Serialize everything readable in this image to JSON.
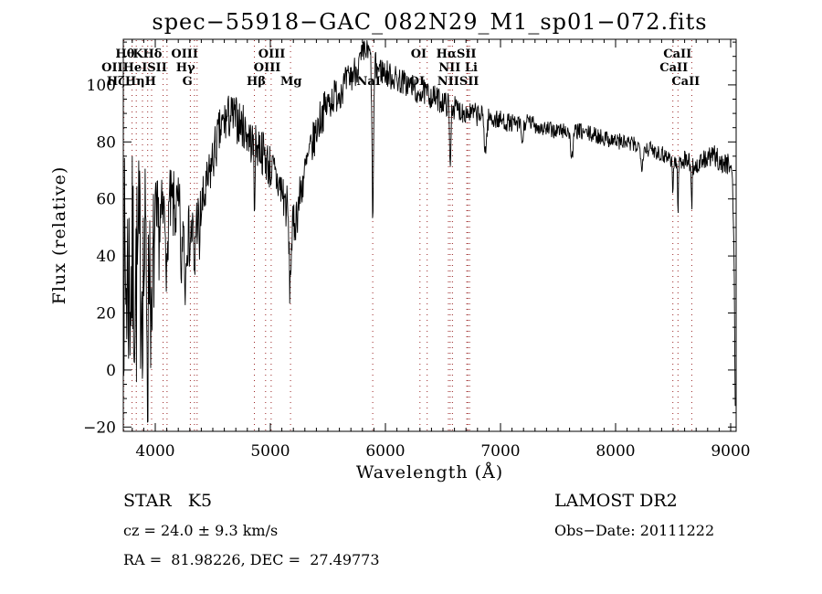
{
  "figure": {
    "title": "spec−55918−GAC_082N29_M1_sp01−072.fits",
    "footer": {
      "class_label": "STAR   K5",
      "survey": "LAMOST DR2",
      "cz": "cz = 24.0 ± 9.3 km/s",
      "obs_date": "Obs−Date: 20111222",
      "coords": "RA =  81.98226, DEC =  27.49773"
    }
  },
  "chart_data": {
    "type": "line",
    "title": "spec−55918−GAC_082N29_M1_sp01−072.fits",
    "xlabel": "Wavelength (Å)",
    "ylabel": "Flux (relative)",
    "xlim": [
      3722,
      9048
    ],
    "ylim": [
      -21.5,
      116
    ],
    "xticks": [
      4000,
      5000,
      6000,
      7000,
      8000,
      9000
    ],
    "xtick_labels": [
      "4000",
      "5000",
      "6000",
      "7000",
      "8000",
      "9000"
    ],
    "yticks": [
      -20,
      0,
      20,
      40,
      60,
      80,
      100
    ],
    "ytick_labels": [
      "−20",
      "0",
      "20",
      "40",
      "60",
      "80",
      "100"
    ],
    "x_minor_step": 100,
    "y_minor_step": 5,
    "grid": false,
    "legend": false,
    "colors": {
      "trace": "#000000",
      "line_marker": "#992222",
      "axis": "#000000",
      "background": "#ffffff"
    },
    "spectral_lines": [
      3727,
      3798,
      3835,
      3889,
      3934,
      3968,
      4068,
      4102,
      4305,
      4340,
      4363,
      4861,
      4959,
      5007,
      5175,
      5890,
      6300,
      6363,
      6548,
      6563,
      6583,
      6707,
      6716,
      6731,
      8498,
      8542,
      8662
    ],
    "line_labels": [
      {
        "text": "Hθ",
        "wl": 3737,
        "row": 0
      },
      {
        "text": "K",
        "wl": 3849,
        "row": 0
      },
      {
        "text": "Hδ",
        "wl": 3976,
        "row": 0
      },
      {
        "text": "OIII",
        "wl": 4255,
        "row": 0
      },
      {
        "text": "OIII",
        "wl": 5013,
        "row": 0
      },
      {
        "text": "OI",
        "wl": 6289,
        "row": 0
      },
      {
        "text": "HαSII",
        "wl": 6616,
        "row": 0
      },
      {
        "text": "CaII",
        "wl": 8538,
        "row": 0
      },
      {
        "text": "OIIHeISII",
        "wl": 3817,
        "row": 1
      },
      {
        "text": "Hγ",
        "wl": 4263,
        "row": 1
      },
      {
        "text": "OIII",
        "wl": 4973,
        "row": 1
      },
      {
        "text": "NII Li",
        "wl": 6632,
        "row": 1
      },
      {
        "text": "CaII",
        "wl": 8506,
        "row": 1
      },
      {
        "text": "HζHηH",
        "wl": 3793,
        "row": 2
      },
      {
        "text": "G",
        "wl": 4279,
        "row": 2
      },
      {
        "text": "Hβ",
        "wl": 4877,
        "row": 2
      },
      {
        "text": "Mg",
        "wl": 5180,
        "row": 2
      },
      {
        "text": "OI",
        "wl": 6273,
        "row": 2
      },
      {
        "text": "NaI",
        "wl": 5855,
        "row": 2
      },
      {
        "text": "NIISII",
        "wl": 6632,
        "row": 2
      },
      {
        "text": "CaII",
        "wl": 8610,
        "row": 2
      }
    ],
    "spectrum": {
      "seed": 7,
      "step": 4,
      "end": 9042,
      "envelope": [
        [
          3722,
          40
        ],
        [
          3740,
          30
        ],
        [
          3760,
          34
        ],
        [
          3780,
          30
        ],
        [
          3800,
          36
        ],
        [
          3830,
          28
        ],
        [
          3860,
          38
        ],
        [
          3890,
          32
        ],
        [
          3920,
          42
        ],
        [
          3950,
          46
        ],
        [
          3980,
          40
        ],
        [
          4010,
          46
        ],
        [
          4050,
          52
        ],
        [
          4100,
          56
        ],
        [
          4150,
          57
        ],
        [
          4200,
          55
        ],
        [
          4250,
          50
        ],
        [
          4300,
          46
        ],
        [
          4350,
          52
        ],
        [
          4400,
          56
        ],
        [
          4450,
          64
        ],
        [
          4500,
          74
        ],
        [
          4550,
          82
        ],
        [
          4600,
          87
        ],
        [
          4650,
          89
        ],
        [
          4700,
          88
        ],
        [
          4750,
          86
        ],
        [
          4800,
          83
        ],
        [
          4860,
          78
        ],
        [
          4900,
          79
        ],
        [
          4950,
          75
        ],
        [
          5000,
          71
        ],
        [
          5050,
          67
        ],
        [
          5100,
          63
        ],
        [
          5150,
          56
        ],
        [
          5190,
          48
        ],
        [
          5230,
          55
        ],
        [
          5280,
          66
        ],
        [
          5330,
          74
        ],
        [
          5380,
          81
        ],
        [
          5430,
          88
        ],
        [
          5480,
          92
        ],
        [
          5530,
          95
        ],
        [
          5580,
          97
        ],
        [
          5650,
          100
        ],
        [
          5720,
          104
        ],
        [
          5780,
          108
        ],
        [
          5830,
          112
        ],
        [
          5870,
          110
        ],
        [
          5920,
          106
        ],
        [
          5970,
          105
        ],
        [
          6050,
          103
        ],
        [
          6150,
          101
        ],
        [
          6250,
          99
        ],
        [
          6350,
          97
        ],
        [
          6450,
          95
        ],
        [
          6550,
          93
        ],
        [
          6650,
          91
        ],
        [
          6750,
          90
        ],
        [
          6850,
          89
        ],
        [
          6950,
          88
        ],
        [
          7050,
          87
        ],
        [
          7150,
          86
        ],
        [
          7250,
          87
        ],
        [
          7350,
          85
        ],
        [
          7450,
          84
        ],
        [
          7550,
          84
        ],
        [
          7650,
          84
        ],
        [
          7750,
          83
        ],
        [
          7850,
          82
        ],
        [
          7950,
          81
        ],
        [
          8050,
          80
        ],
        [
          8150,
          79
        ],
        [
          8250,
          78
        ],
        [
          8350,
          77
        ],
        [
          8450,
          75
        ],
        [
          8530,
          73
        ],
        [
          8610,
          74
        ],
        [
          8700,
          71
        ],
        [
          8780,
          74
        ],
        [
          8860,
          75
        ],
        [
          8940,
          72
        ],
        [
          9000,
          73
        ],
        [
          9015,
          68
        ],
        [
          9030,
          40
        ],
        [
          9040,
          -14
        ]
      ],
      "noise_amplitude": [
        [
          3722,
          42
        ],
        [
          3850,
          40
        ],
        [
          3950,
          32
        ],
        [
          4050,
          15
        ],
        [
          4250,
          12
        ],
        [
          4500,
          9
        ],
        [
          4800,
          8
        ],
        [
          5150,
          9
        ],
        [
          5400,
          7
        ],
        [
          5700,
          6
        ],
        [
          6000,
          5
        ],
        [
          6400,
          4.5
        ],
        [
          6800,
          4
        ],
        [
          7200,
          3
        ],
        [
          7800,
          3
        ],
        [
          8300,
          3
        ],
        [
          8700,
          3.5
        ],
        [
          8960,
          4
        ],
        [
          9040,
          3
        ]
      ],
      "absorption_dips": [
        [
          3934,
          40,
          6
        ],
        [
          3968,
          38,
          6
        ],
        [
          4102,
          30,
          5
        ],
        [
          4227,
          30,
          4
        ],
        [
          4260,
          25,
          4
        ],
        [
          4340,
          22,
          5
        ],
        [
          4383,
          15,
          4
        ],
        [
          4861,
          20,
          4
        ],
        [
          5170,
          22,
          8
        ],
        [
          5890,
          54,
          7
        ],
        [
          6277,
          8,
          5
        ],
        [
          6563,
          24,
          5
        ],
        [
          6870,
          12,
          10
        ],
        [
          7190,
          7,
          8
        ],
        [
          7620,
          9,
          12
        ],
        [
          8230,
          6,
          8
        ],
        [
          8498,
          13,
          4
        ],
        [
          8542,
          18,
          4
        ],
        [
          8662,
          15,
          4
        ]
      ]
    }
  }
}
